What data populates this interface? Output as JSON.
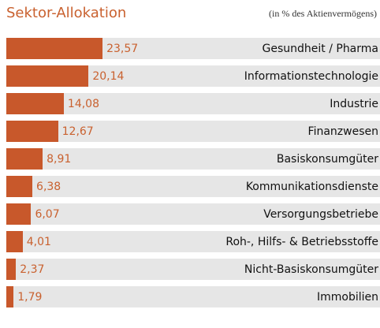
{
  "chart_data": {
    "type": "bar",
    "orientation": "horizontal",
    "title": "Sektor-Allokation",
    "subtitle": "(in % des Aktienvermögens)",
    "categories": [
      "Gesundheit / Pharma",
      "Informationstechnologie",
      "Industrie",
      "Finanzwesen",
      "Basiskonsumgüter",
      "Kommunikationsdienste",
      "Versorgungsbetriebe",
      "Roh-, Hilfs- & Betriebsstof­fe",
      "Nicht-Basiskonsumgüter",
      "Immobilien"
    ],
    "values": [
      23.57,
      20.14,
      14.08,
      12.67,
      8.91,
      6.38,
      6.07,
      4.01,
      2.37,
      1.79
    ],
    "value_labels": [
      "23,57",
      "20,14",
      "14,08",
      "12,67",
      "8,91",
      "6,38",
      "6,07",
      "4,01",
      "2,37",
      "1,79"
    ],
    "color": "#c8582b"
  }
}
